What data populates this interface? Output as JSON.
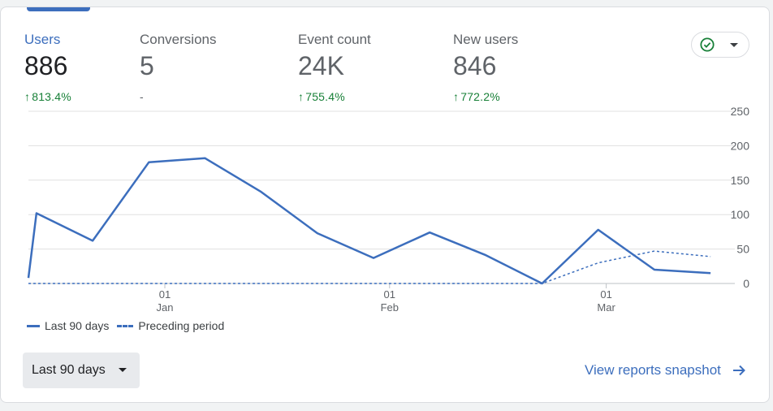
{
  "metrics": [
    {
      "label": "Users",
      "value": "886",
      "change": "813.4%",
      "direction": "up",
      "active": true
    },
    {
      "label": "Conversions",
      "value": "5",
      "change": "-",
      "direction": "none",
      "active": false
    },
    {
      "label": "Event count",
      "value": "24K",
      "change": "755.4%",
      "direction": "up",
      "active": false
    },
    {
      "label": "New users",
      "value": "846",
      "change": "772.2%",
      "direction": "up",
      "active": false
    }
  ],
  "status_icon": "check-circle-icon",
  "chart_data": {
    "type": "line",
    "y_ticks": [
      "0",
      "50",
      "100",
      "150",
      "200",
      "250"
    ],
    "ylim": [
      0,
      250
    ],
    "x_tick_labels": [
      {
        "day": "01",
        "month": "Jan"
      },
      {
        "day": "01",
        "month": "Feb"
      },
      {
        "day": "01",
        "month": "Mar"
      }
    ],
    "series": [
      {
        "name": "Last 90 days",
        "style": "solid",
        "color": "#3c6ebd",
        "points": [
          [
            0,
            8
          ],
          [
            1,
            102
          ],
          [
            8,
            62
          ],
          [
            15,
            176
          ],
          [
            22,
            182
          ],
          [
            29,
            133
          ],
          [
            36,
            73
          ],
          [
            43,
            37
          ],
          [
            50,
            74
          ],
          [
            57,
            41
          ],
          [
            64,
            0
          ],
          [
            71,
            78
          ],
          [
            78,
            20
          ],
          [
            85,
            15
          ]
        ]
      },
      {
        "name": "Preceding period",
        "style": "dashed",
        "color": "#3c6ebd",
        "points": [
          [
            0,
            0
          ],
          [
            64,
            0
          ],
          [
            71,
            30
          ],
          [
            78,
            47
          ],
          [
            85,
            39
          ]
        ]
      }
    ],
    "x_tick_positions": [
      17,
      45,
      72
    ]
  },
  "legend": [
    "Last 90 days",
    "Preceding period"
  ],
  "range_button": "Last 90 days",
  "snapshot_link": "View reports snapshot",
  "colors": {
    "accent": "#3c6ebd",
    "positive": "#188038",
    "grid": "#e0e0e0"
  }
}
